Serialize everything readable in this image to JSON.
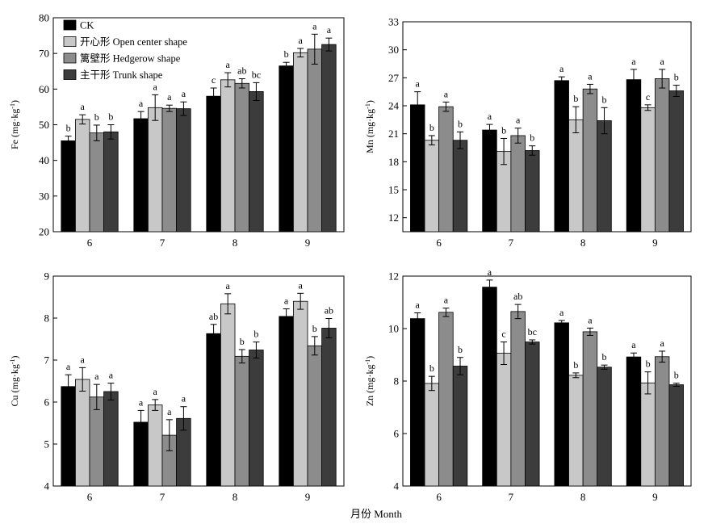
{
  "figure": {
    "xlabel": "月份 Month"
  },
  "legend": {
    "items": [
      {
        "label": "CK",
        "color": "#000000"
      },
      {
        "label": "开心形 Open center shape",
        "color": "#c8c8c8"
      },
      {
        "label": "篱壁形 Hedgerow shape",
        "color": "#8c8c8c"
      },
      {
        "label": "主干形 Trunk shape",
        "color": "#3c3c3c"
      }
    ]
  },
  "chart_data": [
    {
      "type": "bar",
      "id": "fe",
      "ylabel_main": "Fe (mg·kg",
      "ylabel_sup": "-1",
      "ylabel_end": ")",
      "ylim": [
        20,
        80
      ],
      "yticks": [
        20,
        30,
        40,
        50,
        60,
        70,
        80
      ],
      "categories": [
        "6",
        "7",
        "8",
        "9"
      ],
      "series": [
        {
          "name": "CK",
          "values": [
            45.5,
            51.7,
            58.0,
            66.5
          ],
          "errors": [
            1.3,
            2.0,
            2.3,
            1.0
          ],
          "labels": [
            "b",
            "a",
            "c",
            "b"
          ]
        },
        {
          "name": "开心形 Open center shape",
          "values": [
            51.5,
            54.8,
            62.6,
            70.2
          ],
          "errors": [
            1.3,
            3.6,
            2.0,
            1.2
          ],
          "labels": [
            "a",
            "a",
            "a",
            "a"
          ]
        },
        {
          "name": "篱壁形 Hedgerow shape",
          "values": [
            47.7,
            54.6,
            61.6,
            71.2
          ],
          "errors": [
            2.2,
            0.9,
            1.3,
            4.2
          ],
          "labels": [
            "b",
            "a",
            "ab",
            "a"
          ]
        },
        {
          "name": "主干形 Trunk shape",
          "values": [
            48.0,
            54.5,
            59.3,
            72.5
          ],
          "errors": [
            2.0,
            1.9,
            2.5,
            1.8
          ],
          "labels": [
            "b",
            "a",
            "bc",
            "a"
          ]
        }
      ]
    },
    {
      "type": "bar",
      "id": "mn",
      "ylabel_main": "Mn (mg·kg",
      "ylabel_sup": "-1",
      "ylabel_end": ")",
      "ylim": [
        10.5,
        33
      ],
      "yticks": [
        12,
        15,
        18,
        21,
        24,
        27,
        30,
        33
      ],
      "categories": [
        "6",
        "7",
        "8",
        "9"
      ],
      "series": [
        {
          "name": "CK",
          "values": [
            24.1,
            21.4,
            26.7,
            26.8
          ],
          "errors": [
            1.4,
            0.6,
            0.4,
            1.1
          ],
          "labels": [
            "a",
            "a",
            "a",
            "a"
          ]
        },
        {
          "name": "开心形 Open center shape",
          "values": [
            20.3,
            19.1,
            22.5,
            23.8
          ],
          "errors": [
            0.5,
            1.4,
            1.4,
            0.3
          ],
          "labels": [
            "b",
            "b",
            "b",
            "c"
          ]
        },
        {
          "name": "篱壁形 Hedgerow shape",
          "values": [
            23.9,
            20.8,
            25.8,
            26.9
          ],
          "errors": [
            0.5,
            0.8,
            0.5,
            1.0
          ],
          "labels": [
            "a",
            "a",
            "a",
            "a"
          ]
        },
        {
          "name": "主干形 Trunk shape",
          "values": [
            20.3,
            19.2,
            22.4,
            25.6
          ],
          "errors": [
            0.9,
            0.5,
            1.4,
            0.6
          ],
          "labels": [
            "b",
            "b",
            "b",
            "b"
          ]
        }
      ]
    },
    {
      "type": "bar",
      "id": "cu",
      "ylabel_main": "Cu (mg·kg",
      "ylabel_sup": "-1",
      "ylabel_end": ")",
      "ylim": [
        4,
        9
      ],
      "yticks": [
        4,
        5,
        6,
        7,
        8,
        9
      ],
      "categories": [
        "6",
        "7",
        "8",
        "9"
      ],
      "series": [
        {
          "name": "CK",
          "values": [
            6.37,
            5.52,
            7.63,
            8.04
          ],
          "errors": [
            0.28,
            0.28,
            0.22,
            0.18
          ],
          "labels": [
            "a",
            "a",
            "ab",
            "a"
          ]
        },
        {
          "name": "开心形 Open center shape",
          "values": [
            6.54,
            5.93,
            8.34,
            8.4
          ],
          "errors": [
            0.28,
            0.13,
            0.24,
            0.19
          ],
          "labels": [
            "a",
            "a",
            "a",
            "a"
          ]
        },
        {
          "name": "篱壁形 Hedgerow shape",
          "values": [
            6.12,
            5.21,
            7.09,
            7.34
          ],
          "errors": [
            0.3,
            0.37,
            0.16,
            0.22
          ],
          "labels": [
            "a",
            "a",
            "b",
            "b"
          ]
        },
        {
          "name": "主干形 Trunk shape",
          "values": [
            6.25,
            5.61,
            7.24,
            7.76
          ],
          "errors": [
            0.2,
            0.28,
            0.19,
            0.23
          ],
          "labels": [
            "a",
            "a",
            "b",
            "ab"
          ]
        }
      ]
    },
    {
      "type": "bar",
      "id": "zn",
      "ylabel_main": "Zn (mg·kg",
      "ylabel_sup": "-1",
      "ylabel_end": ")",
      "ylim": [
        4,
        12
      ],
      "yticks": [
        4,
        6,
        8,
        10,
        12
      ],
      "categories": [
        "6",
        "7",
        "8",
        "9"
      ],
      "series": [
        {
          "name": "CK",
          "values": [
            10.38,
            11.58,
            10.22,
            8.92
          ],
          "errors": [
            0.22,
            0.27,
            0.09,
            0.15
          ],
          "labels": [
            "a",
            "a",
            "a",
            "a"
          ]
        },
        {
          "name": "开心形 Open center shape",
          "values": [
            7.91,
            9.06,
            8.22,
            7.93
          ],
          "errors": [
            0.27,
            0.43,
            0.09,
            0.42
          ],
          "labels": [
            "b",
            "c",
            "b",
            "b"
          ]
        },
        {
          "name": "篱壁形 Hedgerow shape",
          "values": [
            10.62,
            10.65,
            9.88,
            8.93
          ],
          "errors": [
            0.16,
            0.27,
            0.14,
            0.21
          ],
          "labels": [
            "a",
            "ab",
            "a",
            "a"
          ]
        },
        {
          "name": "主干形 Trunk shape",
          "values": [
            8.57,
            9.49,
            8.53,
            7.86
          ],
          "errors": [
            0.33,
            0.08,
            0.08,
            0.06
          ],
          "labels": [
            "b",
            "bc",
            "b",
            "b"
          ]
        }
      ]
    }
  ]
}
